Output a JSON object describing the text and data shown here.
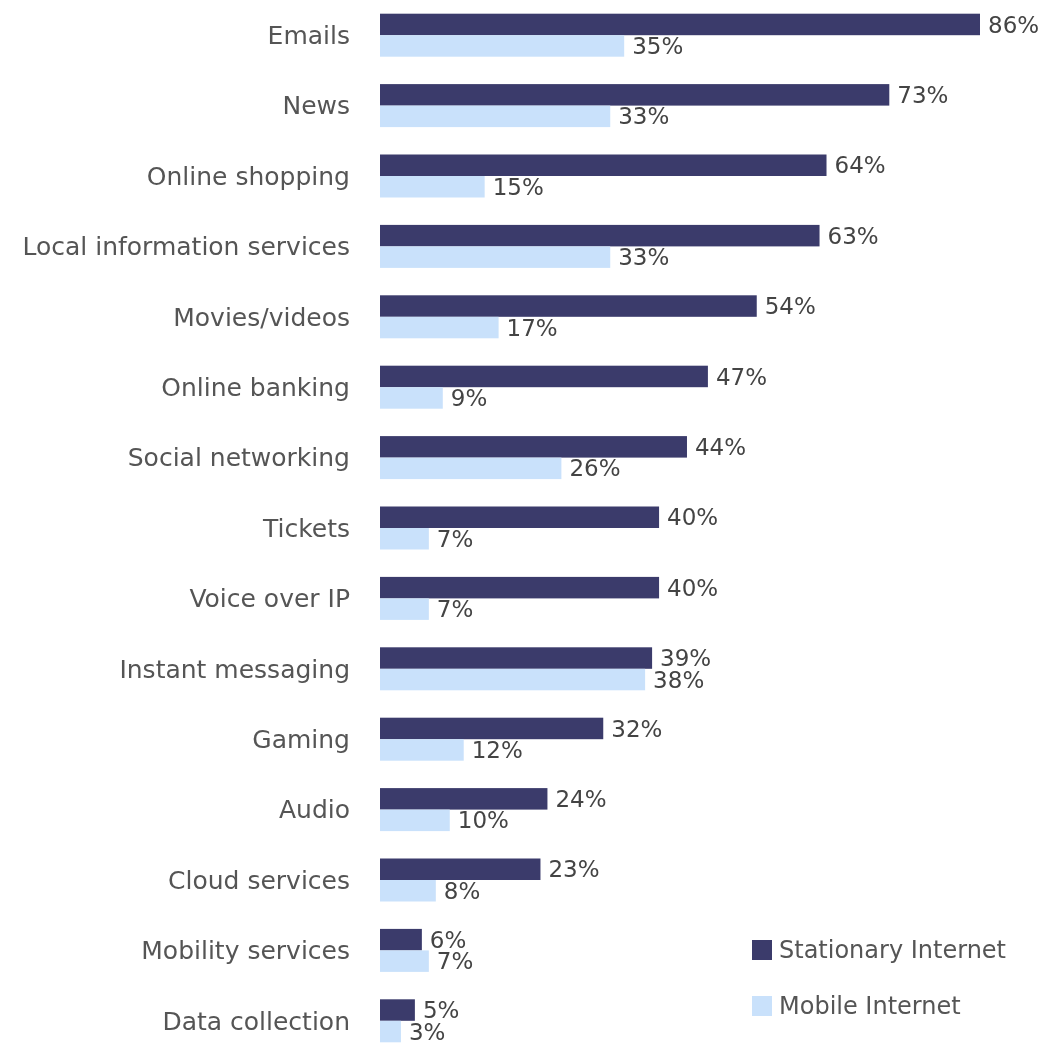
{
  "chart_data": {
    "type": "bar",
    "orientation": "horizontal",
    "legend": "bottom right",
    "categories": [
      "Emails",
      "News",
      "Online shopping",
      "Local information services",
      "Movies/videos",
      "Online banking",
      "Social networking",
      "Tickets",
      "Voice over IP",
      "Instant messaging",
      "Gaming",
      "Audio",
      "Cloud services",
      "Mobility services",
      "Data collection"
    ],
    "series": [
      {
        "name": "Stationary Internet",
        "color": "#3b3b6b",
        "values": [
          86,
          73,
          64,
          63,
          54,
          47,
          44,
          40,
          40,
          39,
          32,
          24,
          23,
          6,
          5
        ],
        "value_labels": [
          "86%",
          "73%",
          "64%",
          "63%",
          "54%",
          "47%",
          "44%",
          "40%",
          "40%",
          "39%",
          "32%",
          "24%",
          "23%",
          "6%",
          "5%"
        ]
      },
      {
        "name": "Mobile Internet",
        "color": "#c9e1fb",
        "values": [
          35,
          33,
          15,
          33,
          17,
          9,
          26,
          7,
          7,
          38,
          12,
          10,
          8,
          7,
          3
        ],
        "value_labels": [
          "35%",
          "33%",
          "15%",
          "33%",
          "17%",
          "9%",
          "26%",
          "7%",
          "7%",
          "38%",
          "12%",
          "10%",
          "8%",
          "7%",
          "3%"
        ]
      }
    ]
  }
}
